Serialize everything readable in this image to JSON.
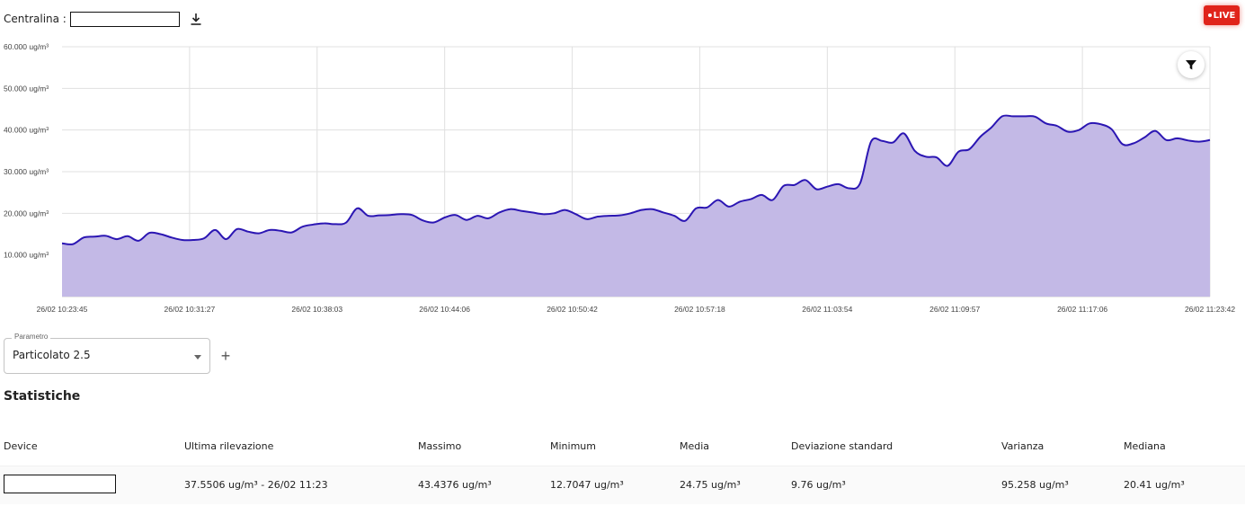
{
  "header": {
    "centralina_label": "Centralina :",
    "centralina_value": "",
    "live_label": "LIVE"
  },
  "chart_data": {
    "type": "area",
    "ylabel_unit": "ug/m³",
    "ylim": [
      0,
      60
    ],
    "y_ticks": [
      "60.000 ug/m³",
      "50.000 ug/m³",
      "40.000 ug/m³",
      "30.000 ug/m³",
      "20.000 ug/m³",
      "10.000 ug/m³"
    ],
    "x_ticks": [
      "26/02 10:23:45",
      "26/02 10:31:27",
      "26/02 10:38:03",
      "26/02 10:44:06",
      "26/02 10:50:42",
      "26/02 10:57:18",
      "26/02 11:03:54",
      "26/02 11:09:57",
      "26/02 11:17:06",
      "26/02 11:23:42"
    ],
    "series": [
      {
        "values": [
          12.8,
          12.6,
          14.2,
          14.4,
          14.6,
          13.8,
          14.5,
          13.4,
          15.3,
          15.0,
          14.2,
          13.6,
          13.6,
          14.0,
          16.0,
          13.8,
          16.2,
          15.6,
          15.2,
          16.0,
          15.8,
          15.4,
          16.8,
          17.3,
          17.6,
          17.4,
          17.8,
          21.2,
          19.4,
          19.5,
          19.6,
          19.8,
          19.6,
          18.3,
          17.8,
          19.0,
          19.6,
          18.4,
          19.4,
          18.8,
          20.2,
          21.0,
          20.6,
          20.2,
          19.8,
          20.0,
          20.8,
          19.8,
          18.6,
          19.2,
          19.4,
          19.5,
          20.0,
          20.8,
          21.0,
          20.2,
          19.4,
          18.2,
          21.2,
          21.4,
          23.2,
          21.6,
          22.8,
          23.4,
          24.4,
          23.2,
          26.6,
          26.8,
          28.0,
          25.8,
          26.4,
          27.0,
          26.0,
          27.2,
          37.2,
          37.4,
          37.0,
          39.2,
          35.0,
          33.6,
          33.4,
          31.4,
          34.8,
          35.4,
          38.4,
          40.6,
          43.3,
          43.3,
          43.3,
          43.2,
          41.6,
          41.0,
          39.6,
          40.0,
          41.6,
          41.4,
          40.2,
          36.6,
          36.8,
          38.2,
          39.8,
          37.6,
          38.0,
          37.5,
          37.2,
          37.6
        ],
        "color": "#2b16b3",
        "fill": "#c3b9e6"
      }
    ],
    "grid": true
  },
  "parametro": {
    "legend": "Parametro",
    "value": "Particolato 2.5"
  },
  "stats": {
    "title": "Statistiche",
    "headers": {
      "device": "Device",
      "ultima": "Ultima rilevazione",
      "massimo": "Massimo",
      "minimum": "Minimum",
      "media": "Media",
      "deviazione": "Deviazione standard",
      "varianza": "Varianza",
      "mediana": "Mediana"
    },
    "row": {
      "device": "",
      "ultima": "37.5506 ug/m³ - 26/02 11:23",
      "massimo": "43.4376 ug/m³",
      "minimum": "12.7047 ug/m³",
      "media": "24.75 ug/m³",
      "deviazione": "9.76 ug/m³",
      "varianza": "95.258 ug/m³",
      "mediana": "20.41 ug/m³"
    }
  }
}
